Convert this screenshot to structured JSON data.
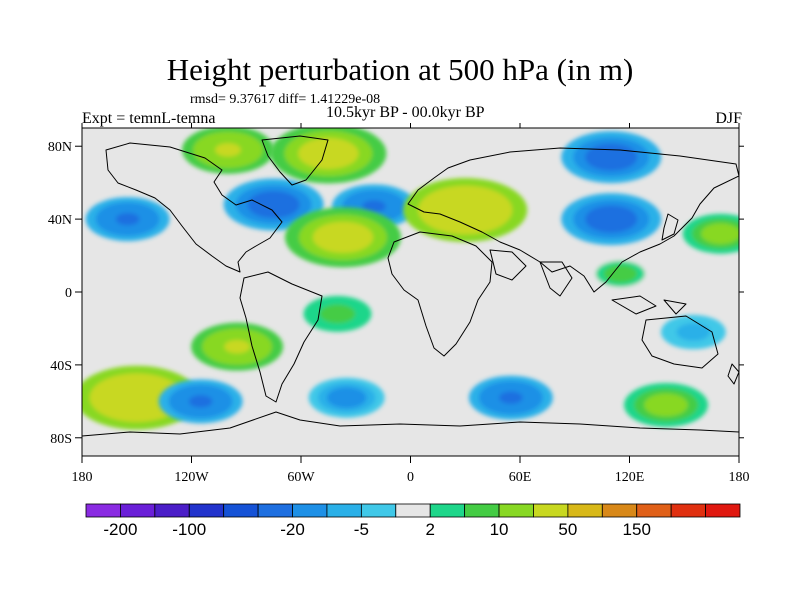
{
  "title": "Height perturbation at 500 hPa (in m)",
  "stats": "rmsd= 9.37617 diff= 1.41229e-08",
  "experiment": "Expt = temnL-temna",
  "period": "10.5kyr BP - 00.0kyr BP",
  "season": "DJF",
  "map": {
    "projection": "cylindrical-equidistant",
    "lon_range": [
      -180,
      180
    ],
    "lat_range": [
      -90,
      90
    ],
    "lon_ticks": [
      {
        "value": -180,
        "label": "180"
      },
      {
        "value": -120,
        "label": "120W"
      },
      {
        "value": -60,
        "label": "60W"
      },
      {
        "value": 0,
        "label": "0"
      },
      {
        "value": 60,
        "label": "60E"
      },
      {
        "value": 120,
        "label": "120E"
      },
      {
        "value": 180,
        "label": "180"
      }
    ],
    "lat_ticks": [
      {
        "value": 80,
        "label": "80N"
      },
      {
        "value": 40,
        "label": "40N"
      },
      {
        "value": 0,
        "label": "0"
      },
      {
        "value": -40,
        "label": "40S"
      },
      {
        "value": -80,
        "label": "80S"
      }
    ],
    "anomalies": [
      {
        "lon": -75,
        "lat": 48,
        "value": -30
      },
      {
        "lon": -155,
        "lat": 40,
        "value": -20
      },
      {
        "lon": -20,
        "lat": 47,
        "value": -20
      },
      {
        "lon": 110,
        "lat": 40,
        "value": -30
      },
      {
        "lon": 110,
        "lat": 74,
        "value": -30
      },
      {
        "lon": -45,
        "lat": 76,
        "value": 40
      },
      {
        "lon": -100,
        "lat": 78,
        "value": 25
      },
      {
        "lon": -37,
        "lat": 30,
        "value": 40
      },
      {
        "lon": 30,
        "lat": 45,
        "value": 45
      },
      {
        "lon": 170,
        "lat": 32,
        "value": 15
      },
      {
        "lon": 115,
        "lat": 10,
        "value": 8
      },
      {
        "lon": 155,
        "lat": -22,
        "value": -8
      },
      {
        "lon": -150,
        "lat": -58,
        "value": 45
      },
      {
        "lon": -95,
        "lat": -30,
        "value": 25
      },
      {
        "lon": -40,
        "lat": -12,
        "value": 10
      },
      {
        "lon": 140,
        "lat": -62,
        "value": 20
      },
      {
        "lon": -115,
        "lat": -60,
        "value": -20
      },
      {
        "lon": -35,
        "lat": -58,
        "value": -15
      },
      {
        "lon": 55,
        "lat": -58,
        "value": -20
      }
    ]
  },
  "colorbar": {
    "colors": [
      "#8a2be2",
      "#6a1fd8",
      "#4b1ec8",
      "#2233cc",
      "#1552d6",
      "#1e6fe0",
      "#1e90e6",
      "#2ab0e8",
      "#40c8e8",
      "#e6e6e6",
      "#1ed68a",
      "#44cc44",
      "#88d824",
      "#c8d820",
      "#d8b818",
      "#d88818",
      "#e06018",
      "#e03010",
      "#e01810"
    ],
    "labels": [
      {
        "boundary": 1,
        "text": "-200"
      },
      {
        "boundary": 3,
        "text": "-100"
      },
      {
        "boundary": 6,
        "text": "-20"
      },
      {
        "boundary": 8,
        "text": "-5"
      },
      {
        "boundary": 10,
        "text": "2"
      },
      {
        "boundary": 12,
        "text": "10"
      },
      {
        "boundary": 14,
        "text": "50"
      },
      {
        "boundary": 16,
        "text": "150"
      }
    ]
  }
}
